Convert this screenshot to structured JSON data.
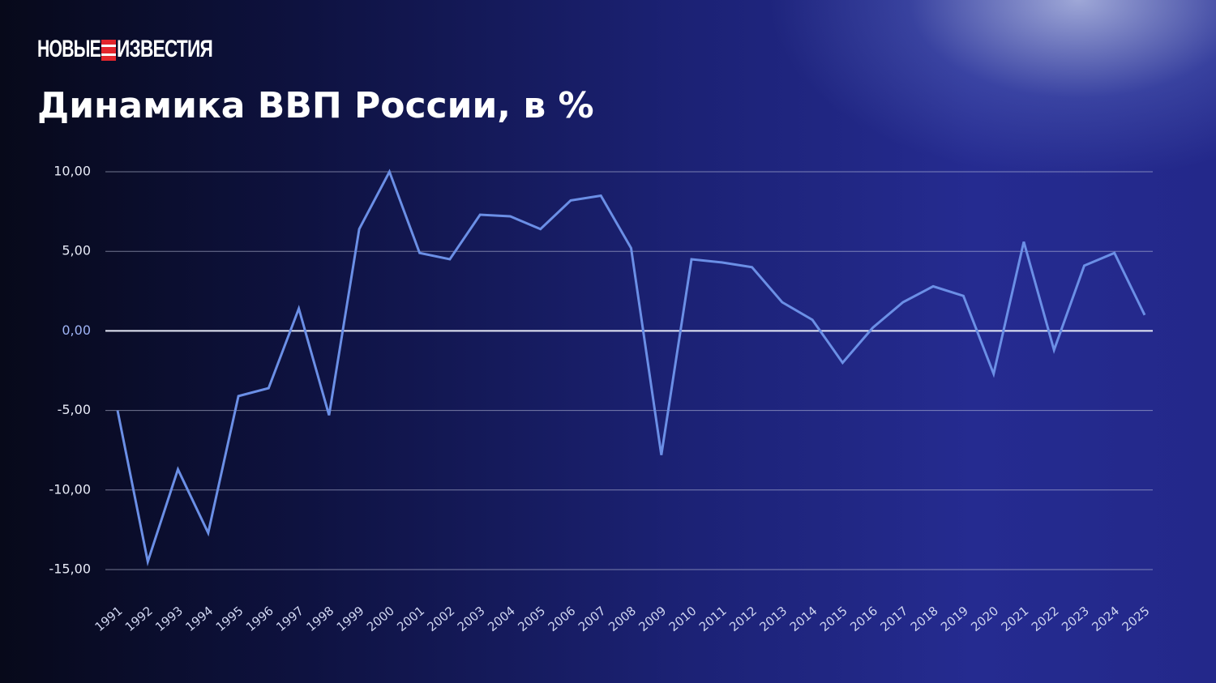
{
  "chart_data": {
    "type": "line",
    "brand": [
      "НОВЫЕ",
      "ИЗВЕСТИЯ"
    ],
    "title": "Динамика ВВП России, в %",
    "x": [
      "1991",
      "1992",
      "1993",
      "1994",
      "1995",
      "1996",
      "1997",
      "1998",
      "1999",
      "2000",
      "2001",
      "2002",
      "2003",
      "2004",
      "2005",
      "2006",
      "2007",
      "2008",
      "2009",
      "2010",
      "2011",
      "2012",
      "2013",
      "2014",
      "2015",
      "2016",
      "2017",
      "2018",
      "2019",
      "2020",
      "2021",
      "2022",
      "2023",
      "2024",
      "2025"
    ],
    "series": [
      {
        "name": "ВВП",
        "color": "#6b8fe6",
        "values": [
          -5.0,
          -14.5,
          -8.7,
          -12.7,
          -4.1,
          -3.6,
          1.4,
          -5.3,
          6.4,
          10.0,
          4.9,
          4.5,
          7.3,
          7.2,
          6.4,
          8.2,
          8.5,
          5.2,
          -7.8,
          4.5,
          4.3,
          4.0,
          1.8,
          0.7,
          -2.0,
          0.2,
          1.8,
          2.8,
          2.2,
          -2.7,
          5.6,
          -1.2,
          4.1,
          4.9,
          1.0
        ]
      }
    ],
    "ylim": [
      -15,
      10
    ],
    "yticks": [
      {
        "value": 10,
        "label": "10,00"
      },
      {
        "value": 5,
        "label": "5,00"
      },
      {
        "value": 0,
        "label": "0,00"
      },
      {
        "value": -5,
        "label": "-5,00"
      },
      {
        "value": -10,
        "label": "-10,00"
      },
      {
        "value": -15,
        "label": "-15,00"
      }
    ],
    "grid": true
  }
}
